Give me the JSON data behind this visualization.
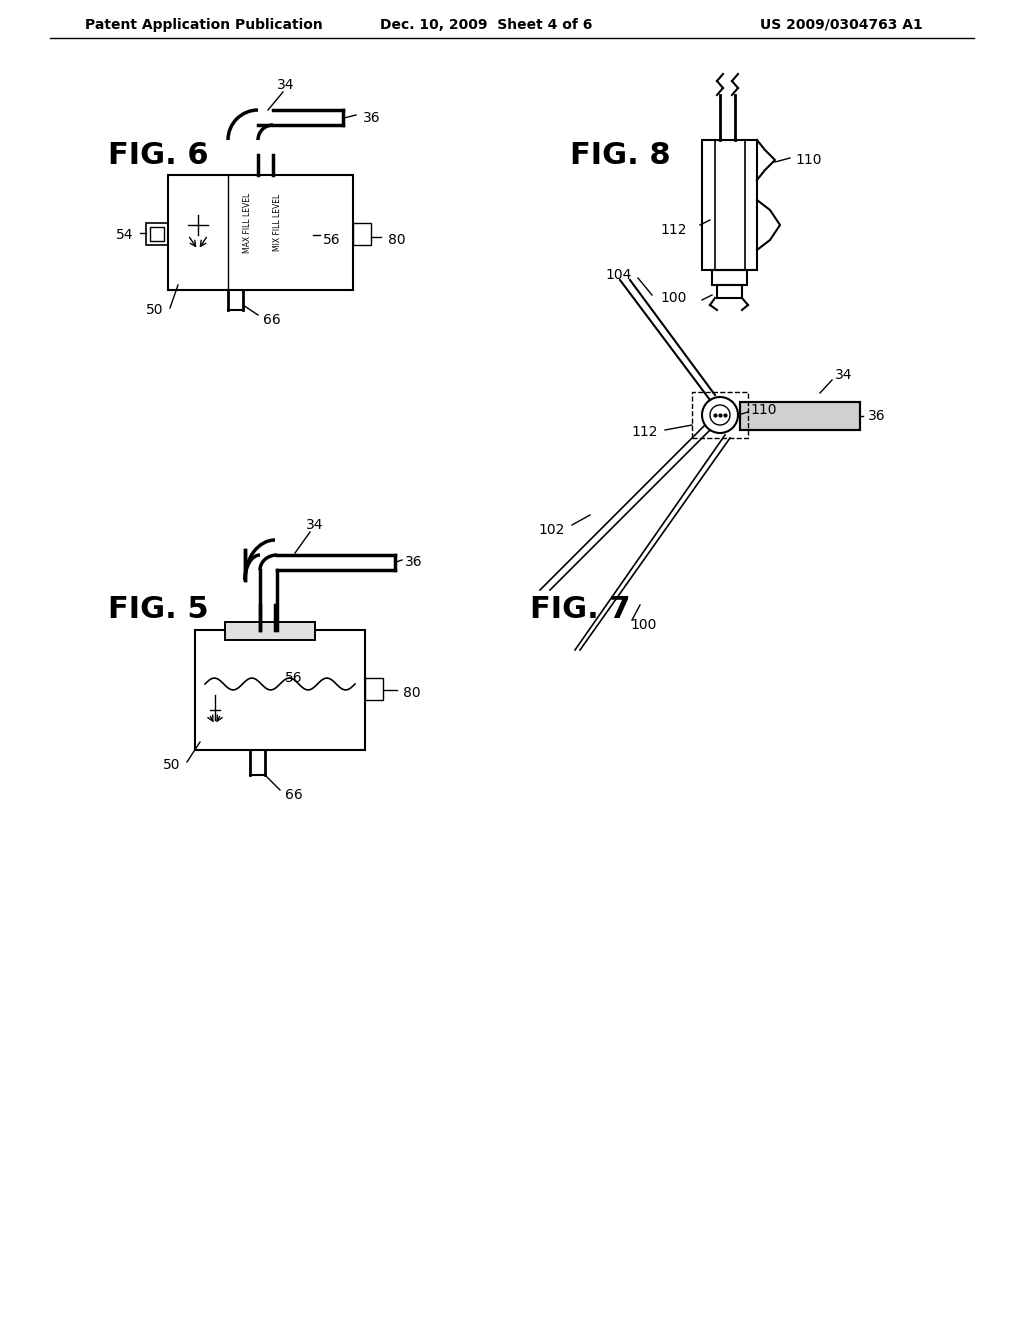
{
  "bg_color": "#ffffff",
  "line_color": "#000000",
  "header_left": "Patent Application Publication",
  "header_mid": "Dec. 10, 2009  Sheet 4 of 6",
  "header_right": "US 2009/0304763 A1",
  "fig_labels": {
    "fig6": "FIG. 6",
    "fig8": "FIG. 8",
    "fig5": "FIG. 5",
    "fig7": "FIG. 7"
  }
}
